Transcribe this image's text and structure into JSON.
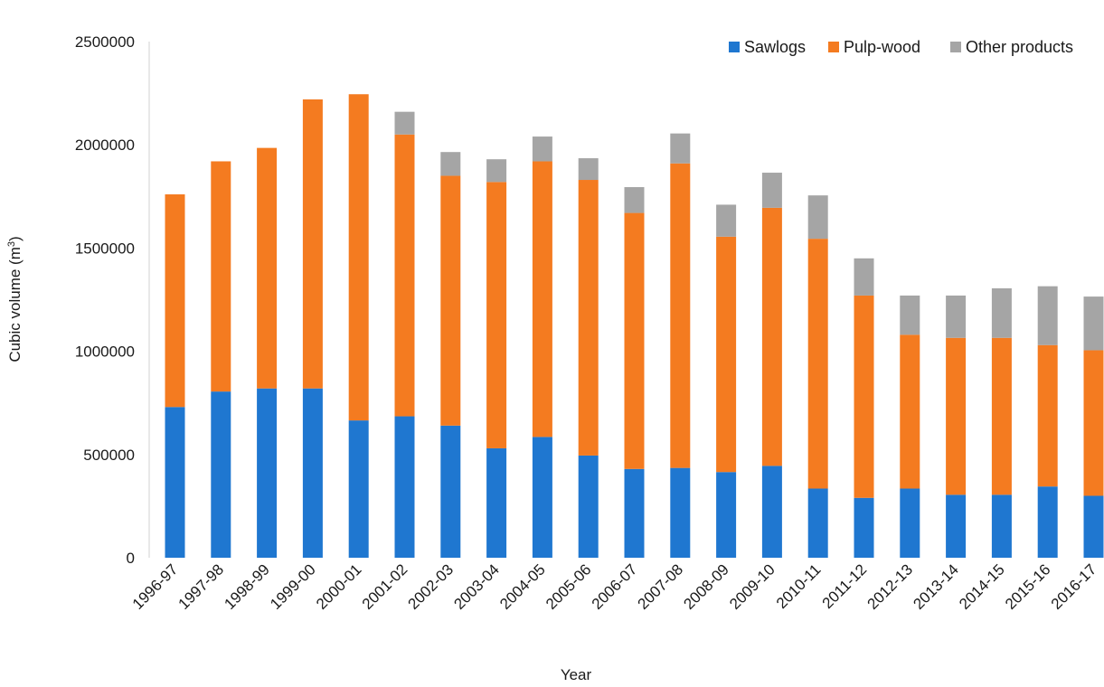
{
  "chart_data": {
    "type": "bar",
    "stacked": true,
    "title": "",
    "xlabel": "Year",
    "ylabel": "Cubic volume (m",
    "ylabel_sup": "3",
    "ylabel_end": ")",
    "ylim": [
      0,
      2500000
    ],
    "yticks": [
      0,
      500000,
      1000000,
      1500000,
      2000000,
      2500000
    ],
    "ytick_labels": [
      "0",
      "500000",
      "1000000",
      "1500000",
      "2000000",
      "2500000"
    ],
    "grid": false,
    "legend_position": "top-right",
    "categories": [
      "1996-97",
      "1997-98",
      "1998-99",
      "1999-00",
      "2000-01",
      "2001-02",
      "2002-03",
      "2003-04",
      "2004-05",
      "2005-06",
      "2006-07",
      "2007-08",
      "2008-09",
      "2009-10",
      "2010-11",
      "2011-12",
      "2012-13",
      "2013-14",
      "2014-15",
      "2015-16",
      "2016-17"
    ],
    "series": [
      {
        "name": "Sawlogs",
        "color": "#1F77D0",
        "values": [
          730000,
          805000,
          820000,
          820000,
          665000,
          685000,
          640000,
          530000,
          585000,
          495000,
          430000,
          435000,
          415000,
          445000,
          335000,
          290000,
          335000,
          305000,
          305000,
          345000,
          300000
        ]
      },
      {
        "name": "Pulp-wood",
        "color": "#F47B20",
        "values": [
          1030000,
          1115000,
          1165000,
          1400000,
          1580000,
          1365000,
          1210000,
          1290000,
          1335000,
          1335000,
          1240000,
          1475000,
          1140000,
          1250000,
          1210000,
          980000,
          745000,
          760000,
          760000,
          685000,
          705000
        ]
      },
      {
        "name": "Other products",
        "color": "#A5A5A5",
        "values": [
          0,
          0,
          0,
          0,
          0,
          110000,
          115000,
          110000,
          120000,
          105000,
          125000,
          145000,
          155000,
          170000,
          210000,
          180000,
          190000,
          205000,
          240000,
          285000,
          260000
        ]
      }
    ]
  }
}
